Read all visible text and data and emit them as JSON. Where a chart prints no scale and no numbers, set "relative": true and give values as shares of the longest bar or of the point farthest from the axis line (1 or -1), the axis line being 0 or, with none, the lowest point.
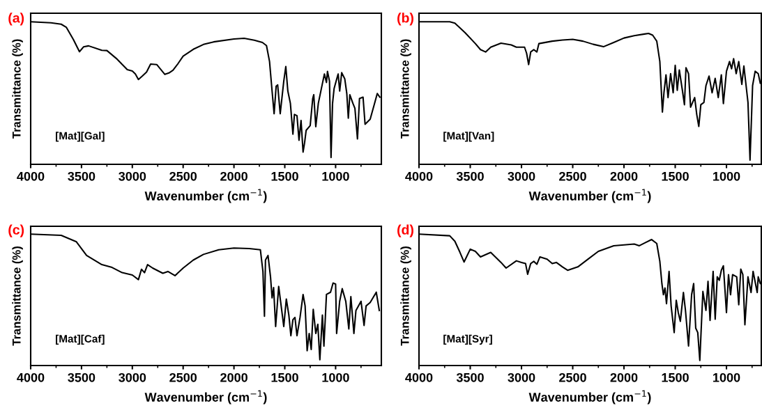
{
  "chart_data": [
    {
      "type": "line",
      "title": "(a)",
      "xlabel": "Wavenumber (cm$^{−1}$)",
      "ylabel": "Transmittance (%)",
      "annotations": [
        "[Mat][Gal]"
      ],
      "relative": true,
      "xlim": [
        4000,
        550
      ],
      "xticks": [
        4000,
        3500,
        3000,
        2500,
        2000,
        1500,
        1000
      ],
      "legend": false,
      "grid": false,
      "series": [
        {
          "color": "#000000",
          "x": [
            4000,
            3800,
            3700,
            3650,
            3580,
            3520,
            3480,
            3430,
            3300,
            3250,
            3150,
            3050,
            3000,
            2970,
            2940,
            2900,
            2860,
            2820,
            2760,
            2680,
            2640,
            2600,
            2550,
            2500,
            2400,
            2300,
            2200,
            2000,
            1900,
            1800,
            1720,
            1680,
            1650,
            1625,
            1605,
            1585,
            1570,
            1545,
            1510,
            1490,
            1470,
            1445,
            1420,
            1405,
            1380,
            1360,
            1340,
            1320,
            1305,
            1290,
            1250,
            1225,
            1215,
            1195,
            1170,
            1130,
            1110,
            1090,
            1080,
            1060,
            1045,
            1030,
            1015,
            995,
            975,
            960,
            940,
            910,
            890,
            875,
            860,
            830,
            810,
            785,
            765,
            730,
            710,
            660,
            620,
            590,
            565
          ],
          "values": [
            1.0,
            0.993,
            0.983,
            0.962,
            0.876,
            0.79,
            0.824,
            0.831,
            0.8,
            0.798,
            0.738,
            0.664,
            0.655,
            0.634,
            0.595,
            0.62,
            0.647,
            0.703,
            0.7,
            0.631,
            0.641,
            0.66,
            0.707,
            0.759,
            0.807,
            0.841,
            0.859,
            0.879,
            0.884,
            0.871,
            0.855,
            0.833,
            0.721,
            0.514,
            0.355,
            0.548,
            0.557,
            0.355,
            0.583,
            0.686,
            0.514,
            0.428,
            0.212,
            0.35,
            0.341,
            0.169,
            0.307,
            0.086,
            0.152,
            0.238,
            0.272,
            0.462,
            0.488,
            0.264,
            0.428,
            0.566,
            0.634,
            0.574,
            0.652,
            0.583,
            0.048,
            0.428,
            0.531,
            0.583,
            0.634,
            0.514,
            0.643,
            0.6,
            0.497,
            0.324,
            0.488,
            0.428,
            0.393,
            0.178,
            0.462,
            0.471,
            0.281,
            0.316,
            0.419,
            0.497,
            0.471
          ]
        }
      ]
    },
    {
      "type": "line",
      "title": "(b)",
      "xlabel": "Wavenumber (cm$^{−1}$)",
      "ylabel": "Transmittance (%)",
      "annotations": [
        "[Mat][Van]"
      ],
      "relative": true,
      "xlim": [
        4000,
        660
      ],
      "xticks": [
        4000,
        3500,
        3000,
        2500,
        2000,
        1500,
        1000
      ],
      "legend": false,
      "grid": false,
      "series": [
        {
          "color": "#000000",
          "x": [
            4000,
            3700,
            3650,
            3550,
            3450,
            3400,
            3350,
            3300,
            3200,
            3100,
            3050,
            2970,
            2950,
            2930,
            2910,
            2880,
            2850,
            2830,
            2700,
            2600,
            2500,
            2400,
            2300,
            2200,
            2100,
            2000,
            1900,
            1800,
            1760,
            1720,
            1680,
            1650,
            1625,
            1610,
            1590,
            1570,
            1545,
            1520,
            1500,
            1480,
            1460,
            1430,
            1410,
            1395,
            1370,
            1350,
            1310,
            1290,
            1270,
            1250,
            1220,
            1200,
            1170,
            1140,
            1110,
            1080,
            1050,
            1030,
            1000,
            970,
            950,
            930,
            905,
            880,
            850,
            830,
            790,
            770,
            745,
            720,
            690,
            670
          ],
          "values": [
            1.0,
            1.0,
            0.99,
            0.923,
            0.847,
            0.805,
            0.788,
            0.822,
            0.85,
            0.838,
            0.822,
            0.822,
            0.779,
            0.7,
            0.788,
            0.805,
            0.788,
            0.847,
            0.864,
            0.872,
            0.877,
            0.864,
            0.842,
            0.825,
            0.855,
            0.886,
            0.902,
            0.914,
            0.918,
            0.906,
            0.864,
            0.721,
            0.367,
            0.502,
            0.628,
            0.468,
            0.636,
            0.502,
            0.695,
            0.519,
            0.662,
            0.519,
            0.418,
            0.678,
            0.636,
            0.401,
            0.468,
            0.35,
            0.266,
            0.418,
            0.434,
            0.552,
            0.619,
            0.502,
            0.603,
            0.468,
            0.628,
            0.426,
            0.653,
            0.721,
            0.67,
            0.741,
            0.636,
            0.721,
            0.561,
            0.69,
            0.434,
            0.03,
            0.552,
            0.653,
            0.636,
            0.569
          ]
        }
      ]
    },
    {
      "type": "line",
      "title": "(c)",
      "xlabel": "Wavenumber (cm$^{−1}$)",
      "ylabel": "Transmittance (%)",
      "annotations": [
        "[Mat][Caf]"
      ],
      "relative": true,
      "xlim": [
        4000,
        550
      ],
      "xticks": [
        4000,
        3500,
        3000,
        2500,
        2000,
        1500,
        1000
      ],
      "legend": false,
      "grid": false,
      "series": [
        {
          "color": "#000000",
          "x": [
            4000,
            3700,
            3550,
            3450,
            3300,
            3200,
            3100,
            3000,
            2940,
            2910,
            2880,
            2850,
            2800,
            2700,
            2650,
            2580,
            2500,
            2400,
            2300,
            2150,
            2000,
            1850,
            1740,
            1715,
            1700,
            1690,
            1665,
            1640,
            1625,
            1610,
            1590,
            1560,
            1530,
            1510,
            1485,
            1460,
            1440,
            1420,
            1400,
            1380,
            1350,
            1320,
            1300,
            1280,
            1260,
            1240,
            1220,
            1195,
            1175,
            1155,
            1130,
            1115,
            1090,
            1050,
            1025,
            1000,
            990,
            960,
            935,
            900,
            870,
            850,
            820,
            800,
            750,
            720,
            700,
            660,
            600,
            570
          ],
          "values": [
            1.0,
            0.991,
            0.942,
            0.838,
            0.768,
            0.747,
            0.707,
            0.689,
            0.654,
            0.733,
            0.707,
            0.768,
            0.742,
            0.702,
            0.716,
            0.684,
            0.742,
            0.803,
            0.846,
            0.881,
            0.894,
            0.89,
            0.881,
            0.716,
            0.375,
            0.803,
            0.838,
            0.672,
            0.515,
            0.593,
            0.297,
            0.602,
            0.419,
            0.297,
            0.506,
            0.384,
            0.227,
            0.349,
            0.366,
            0.227,
            0.366,
            0.541,
            0.454,
            0.113,
            0.244,
            0.122,
            0.428,
            0.244,
            0.314,
            0.044,
            0.384,
            0.148,
            0.541,
            0.558,
            0.628,
            0.62,
            0.244,
            0.489,
            0.585,
            0.489,
            0.279,
            0.524,
            0.244,
            0.419,
            0.489,
            0.305,
            0.454,
            0.48,
            0.558,
            0.419
          ]
        }
      ]
    },
    {
      "type": "line",
      "title": "(d)",
      "xlabel": "Wavenumber (cm$^{−1}$)",
      "ylabel": "Transmittance (%)",
      "annotations": [
        "[Mat][Syr]"
      ],
      "relative": true,
      "xlim": [
        4000,
        660
      ],
      "xticks": [
        4000,
        3500,
        3000,
        2500,
        2000,
        1500,
        1000
      ],
      "legend": false,
      "grid": false,
      "series": [
        {
          "color": "#000000",
          "x": [
            4000,
            3700,
            3650,
            3600,
            3560,
            3500,
            3450,
            3400,
            3300,
            3200,
            3150,
            3050,
            3000,
            2960,
            2940,
            2910,
            2880,
            2850,
            2820,
            2750,
            2700,
            2660,
            2600,
            2550,
            2450,
            2350,
            2250,
            2100,
            1900,
            1850,
            1800,
            1730,
            1680,
            1650,
            1630,
            1615,
            1600,
            1585,
            1560,
            1540,
            1510,
            1490,
            1470,
            1450,
            1420,
            1400,
            1370,
            1340,
            1320,
            1300,
            1280,
            1260,
            1230,
            1200,
            1180,
            1160,
            1130,
            1110,
            1090,
            1070,
            1050,
            1030,
            1000,
            980,
            960,
            940,
            900,
            880,
            860,
            840,
            820,
            790,
            760,
            740,
            700,
            690,
            670
          ],
          "values": [
            1.0,
            0.988,
            0.946,
            0.861,
            0.788,
            0.886,
            0.869,
            0.827,
            0.861,
            0.785,
            0.742,
            0.797,
            0.785,
            0.776,
            0.695,
            0.776,
            0.793,
            0.771,
            0.827,
            0.81,
            0.776,
            0.785,
            0.751,
            0.725,
            0.751,
            0.81,
            0.869,
            0.912,
            0.925,
            0.912,
            0.932,
            0.959,
            0.929,
            0.793,
            0.624,
            0.539,
            0.59,
            0.471,
            0.717,
            0.454,
            0.251,
            0.497,
            0.403,
            0.336,
            0.556,
            0.42,
            0.149,
            0.539,
            0.624,
            0.285,
            0.251,
            0.039,
            0.564,
            0.42,
            0.641,
            0.344,
            0.717,
            0.353,
            0.675,
            0.649,
            0.725,
            0.759,
            0.403,
            0.692,
            0.539,
            0.692,
            0.675,
            0.463,
            0.734,
            0.692,
            0.31,
            0.675,
            0.556,
            0.717,
            0.556,
            0.675,
            0.624
          ]
        }
      ]
    }
  ]
}
